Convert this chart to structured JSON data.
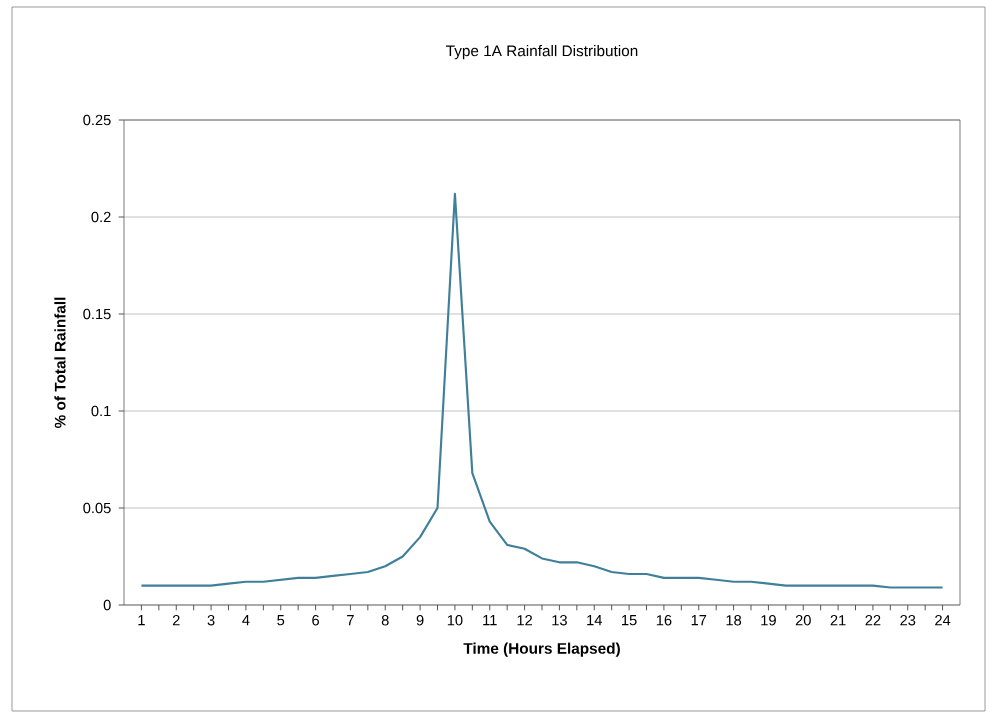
{
  "chart_data": {
    "type": "line",
    "title": "Type 1A Rainfall Distribution",
    "xlabel": "Time (Hours Elapsed)",
    "ylabel": "% of Total Rainfall",
    "x": [
      1,
      1.5,
      2,
      2.5,
      3,
      3.5,
      4,
      4.5,
      5,
      5.5,
      6,
      6.5,
      7,
      7.5,
      8,
      8.5,
      9,
      9.5,
      10,
      10.5,
      11,
      11.5,
      12,
      12.5,
      13,
      13.5,
      14,
      14.5,
      15,
      15.5,
      16,
      16.5,
      17,
      17.5,
      18,
      18.5,
      19,
      19.5,
      20,
      20.5,
      21,
      21.5,
      22,
      22.5,
      23,
      23.5,
      24
    ],
    "series": [
      {
        "color": "#3f7f99",
        "values": [
          0.01,
          0.01,
          0.01,
          0.01,
          0.01,
          0.011,
          0.012,
          0.012,
          0.013,
          0.014,
          0.014,
          0.015,
          0.016,
          0.017,
          0.02,
          0.025,
          0.035,
          0.05,
          0.212,
          0.068,
          0.043,
          0.031,
          0.029,
          0.024,
          0.022,
          0.022,
          0.02,
          0.017,
          0.016,
          0.016,
          0.014,
          0.014,
          0.014,
          0.013,
          0.012,
          0.012,
          0.011,
          0.01,
          0.01,
          0.01,
          0.01,
          0.01,
          0.01,
          0.009,
          0.009,
          0.009,
          0.009
        ]
      }
    ],
    "xlim": [
      0.5,
      24.5
    ],
    "xticks": [
      1,
      2,
      3,
      4,
      5,
      6,
      7,
      8,
      9,
      10,
      11,
      12,
      13,
      14,
      15,
      16,
      17,
      18,
      19,
      20,
      21,
      22,
      23,
      24
    ],
    "ylim": [
      0,
      0.25
    ],
    "yticks": [
      0,
      0.05,
      0.1,
      0.15,
      0.2,
      0.25
    ],
    "grid": "y"
  }
}
